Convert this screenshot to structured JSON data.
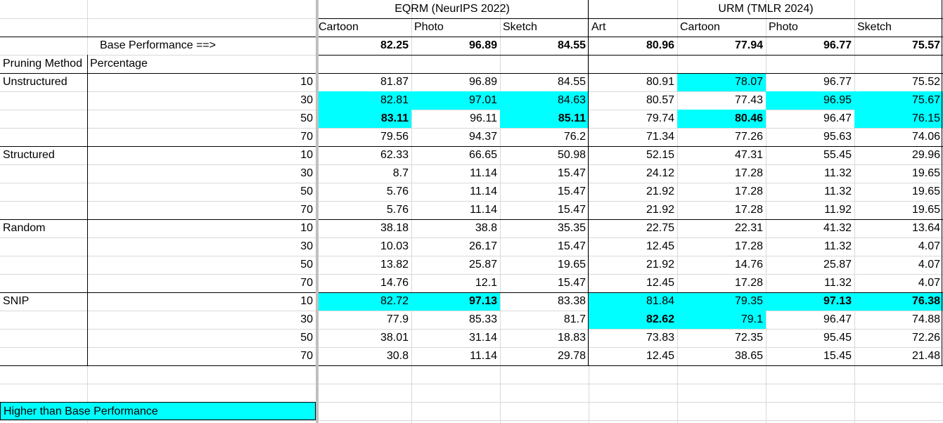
{
  "header": {
    "eqrm_group": "EQRM (NeurIPS 2022)",
    "urm_group": "URM (TMLR 2024)",
    "eqrm_domains": [
      "Cartoon",
      "Photo",
      "Sketch"
    ],
    "urm_domains": [
      "Art",
      "Cartoon",
      "Photo",
      "Sketch"
    ],
    "base_label": "Base Performance ==>",
    "base_values": [
      "82.25",
      "96.89",
      "84.55",
      "80.96",
      "77.94",
      "96.77",
      "75.57"
    ],
    "col_pruning": "Pruning Method",
    "col_percentage": "Percentage"
  },
  "groups": [
    {
      "method": "Unstructured",
      "rows": [
        {
          "pct": "10",
          "values": [
            "81.87",
            "96.89",
            "84.55",
            "80.91",
            "78.07",
            "96.77",
            "75.52"
          ],
          "hl": [
            4
          ],
          "bold": []
        },
        {
          "pct": "30",
          "values": [
            "82.81",
            "97.01",
            "84.63",
            "80.57",
            "77.43",
            "96.95",
            "75.67"
          ],
          "hl": [
            0,
            1,
            2,
            5,
            6
          ],
          "bold": []
        },
        {
          "pct": "50",
          "values": [
            "83.11",
            "96.11",
            "85.11",
            "79.74",
            "80.46",
            "96.47",
            "76.15"
          ],
          "hl": [
            0,
            2,
            4,
            6
          ],
          "bold": [
            0,
            2,
            4
          ]
        },
        {
          "pct": "70",
          "values": [
            "79.56",
            "94.37",
            "76.2",
            "71.34",
            "77.26",
            "95.63",
            "74.06"
          ],
          "hl": [],
          "bold": []
        }
      ]
    },
    {
      "method": "Structured",
      "rows": [
        {
          "pct": "10",
          "values": [
            "62.33",
            "66.65",
            "50.98",
            "52.15",
            "47.31",
            "55.45",
            "29.96"
          ],
          "hl": [],
          "bold": []
        },
        {
          "pct": "30",
          "values": [
            "8.7",
            "11.14",
            "15.47",
            "24.12",
            "17.28",
            "11.32",
            "19.65"
          ],
          "hl": [],
          "bold": []
        },
        {
          "pct": "50",
          "values": [
            "5.76",
            "11.14",
            "15.47",
            "21.92",
            "17.28",
            "11.32",
            "19.65"
          ],
          "hl": [],
          "bold": []
        },
        {
          "pct": "70",
          "values": [
            "5.76",
            "11.14",
            "15.47",
            "21.92",
            "17.28",
            "11.92",
            "19.65"
          ],
          "hl": [],
          "bold": []
        }
      ]
    },
    {
      "method": "Random",
      "rows": [
        {
          "pct": "10",
          "values": [
            "38.18",
            "38.8",
            "35.35",
            "22.75",
            "22.31",
            "41.32",
            "13.64"
          ],
          "hl": [],
          "bold": []
        },
        {
          "pct": "30",
          "values": [
            "10.03",
            "26.17",
            "15.47",
            "12.45",
            "17.28",
            "11.32",
            "4.07"
          ],
          "hl": [],
          "bold": []
        },
        {
          "pct": "50",
          "values": [
            "13.82",
            "25.87",
            "19.65",
            "21.92",
            "14.76",
            "25.87",
            "4.07"
          ],
          "hl": [],
          "bold": []
        },
        {
          "pct": "70",
          "values": [
            "14.76",
            "12.1",
            "15.47",
            "12.45",
            "17.28",
            "11.32",
            "4.07"
          ],
          "hl": [],
          "bold": []
        }
      ]
    },
    {
      "method": "SNIP",
      "rows": [
        {
          "pct": "10",
          "values": [
            "82.72",
            "97.13",
            "83.38",
            "81.84",
            "79.35",
            "97.13",
            "76.38"
          ],
          "hl": [
            0,
            1,
            3,
            4,
            5,
            6
          ],
          "bold": [
            1,
            5,
            6
          ]
        },
        {
          "pct": "30",
          "values": [
            "77.9",
            "85.33",
            "81.7",
            "82.62",
            "79.1",
            "96.47",
            "74.88"
          ],
          "hl": [
            3,
            4
          ],
          "bold": [
            3
          ]
        },
        {
          "pct": "50",
          "values": [
            "38.01",
            "31.14",
            "18.83",
            "73.83",
            "72.35",
            "95.45",
            "72.26"
          ],
          "hl": [],
          "bold": []
        },
        {
          "pct": "70",
          "values": [
            "30.8",
            "11.14",
            "29.78",
            "12.45",
            "38.65",
            "15.45",
            "21.48"
          ],
          "hl": [],
          "bold": []
        }
      ]
    }
  ],
  "legend": {
    "label": "Higher than Base Performance",
    "color": "#00ffff"
  }
}
